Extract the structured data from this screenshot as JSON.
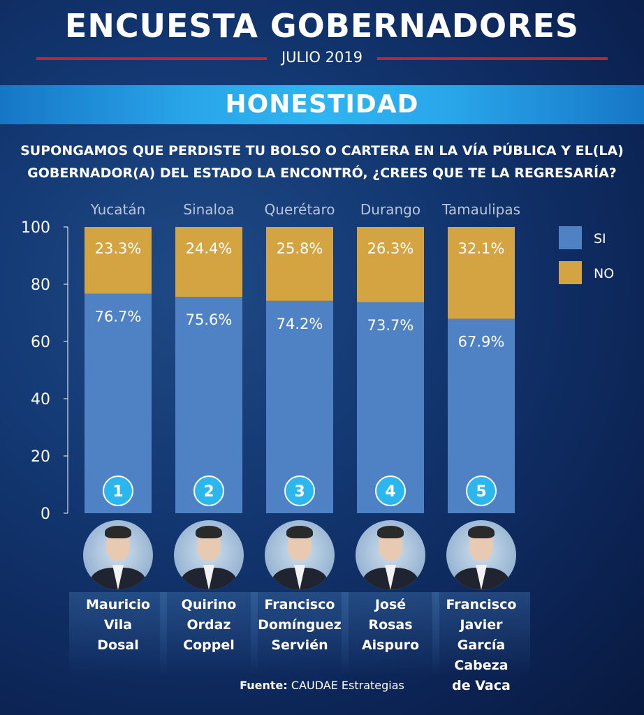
{
  "header": {
    "title": "ENCUESTA GOBERNADORES",
    "date": "JULIO 2019"
  },
  "section": {
    "title": "HONESTIDAD"
  },
  "question": {
    "line1": "SUPONGAMOS QUE PERDISTE TU BOLSO O CARTERA EN LA VÍA PÚBLICA Y EL(LA)",
    "line2": "GOBERNADOR(A) DEL ESTADO LA ENCONTRÓ, ¿CREES QUE TE LA REGRESARÍA?"
  },
  "colors": {
    "si": "#4f82c4",
    "no": "#d4a443",
    "badge": "#2bb7ee"
  },
  "chart_data": {
    "type": "bar",
    "stacked": true,
    "categories": [
      "Yucatán",
      "Sinaloa",
      "Querétaro",
      "Durango",
      "Tamaulipas"
    ],
    "ranks": [
      "1",
      "2",
      "3",
      "4",
      "5"
    ],
    "series": [
      {
        "name": "SI",
        "values": [
          76.7,
          75.6,
          74.2,
          73.7,
          67.9
        ],
        "labels": [
          "76.7%",
          "75.6%",
          "74.2%",
          "73.7%",
          "67.9%"
        ]
      },
      {
        "name": "NO",
        "values": [
          23.3,
          24.4,
          25.8,
          26.3,
          32.1
        ],
        "labels": [
          "23.3%",
          "24.4%",
          "25.8%",
          "26.3%",
          "32.1%"
        ]
      }
    ],
    "ylim": [
      0,
      100
    ],
    "yticks": [
      "0",
      "20",
      "40",
      "60",
      "80",
      "100"
    ],
    "legend_position": "top-right"
  },
  "governors": [
    {
      "name": "Mauricio\nVila\nDosal",
      "photo_icon": "governor-photo"
    },
    {
      "name": "Quirino\nOrdaz\nCoppel",
      "photo_icon": "governor-photo"
    },
    {
      "name": "Francisco\nDomínguez\nServién",
      "photo_icon": "governor-photo"
    },
    {
      "name": "José\nRosas\nAispuro",
      "photo_icon": "governor-photo"
    },
    {
      "name": "Francisco\nJavier\nGarcía Cabeza\nde Vaca",
      "photo_icon": "governor-photo"
    }
  ],
  "source": {
    "label": "Fuente:",
    "text": " CAUDAE Estrategias"
  }
}
